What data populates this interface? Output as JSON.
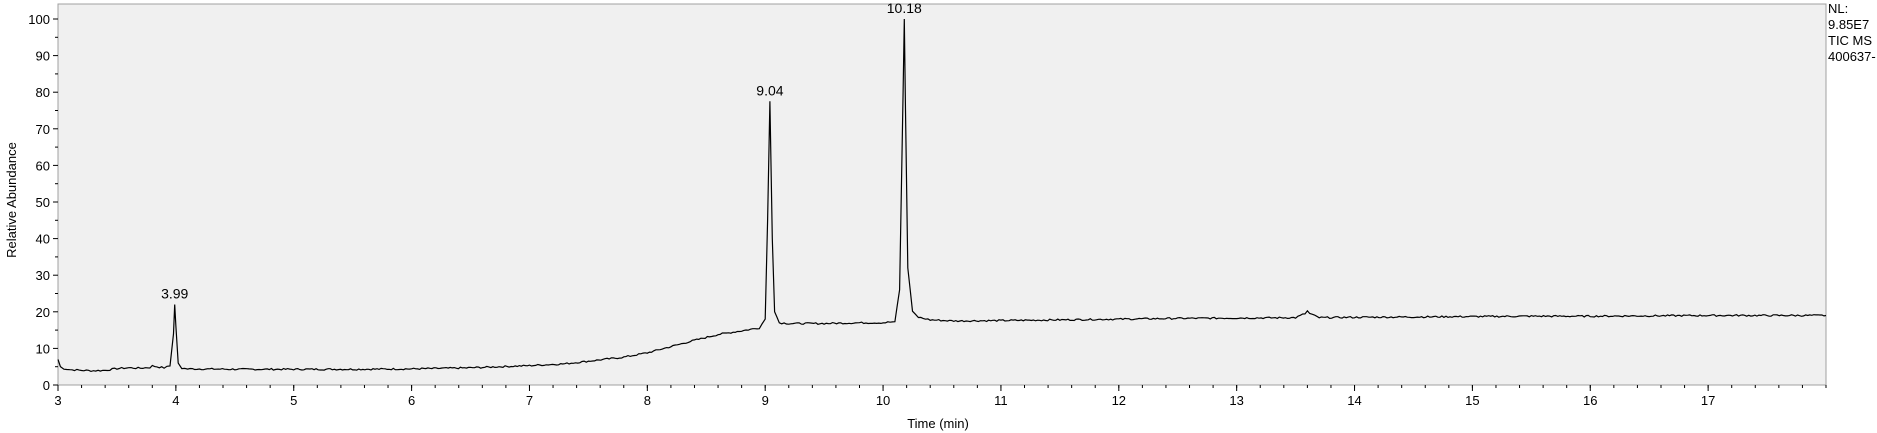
{
  "chart_data": {
    "type": "line",
    "title": "",
    "xlabel": "Time (min)",
    "ylabel": "Relative Abundance",
    "xlim": [
      3,
      18
    ],
    "ylim": [
      0,
      100
    ],
    "x_ticks": [
      3,
      4,
      5,
      6,
      7,
      8,
      9,
      10,
      11,
      12,
      13,
      14,
      15,
      16,
      17
    ],
    "y_ticks": [
      0,
      10,
      20,
      30,
      40,
      50,
      60,
      70,
      80,
      90,
      100
    ],
    "grid": false,
    "legend": "none",
    "line_color": "#000000",
    "plot_background": "#f0f0f0",
    "info_text": [
      "NL:",
      "9.85E7",
      "TIC  MS",
      "400637-"
    ],
    "peak_labels": [
      {
        "text": "3.99",
        "x": 3.99,
        "y": 22
      },
      {
        "text": "9.04",
        "x": 9.04,
        "y": 77.5
      },
      {
        "text": "10.18",
        "x": 10.18,
        "y": 100
      }
    ],
    "series": [
      {
        "x": [
          3.0,
          3.02,
          3.05,
          3.1,
          3.2,
          3.3,
          3.4,
          3.5,
          3.6,
          3.7,
          3.78,
          3.8,
          3.9,
          3.95,
          3.98,
          3.99,
          4.0,
          4.02,
          4.05,
          4.1,
          4.2,
          4.5,
          5.0,
          5.5,
          6.0,
          6.5,
          7.0,
          7.3,
          7.5,
          7.8,
          8.0,
          8.2,
          8.4,
          8.6,
          8.8,
          8.95,
          9.0,
          9.02,
          9.04,
          9.06,
          9.08,
          9.12,
          9.2,
          9.5,
          9.8,
          10.0,
          10.1,
          10.14,
          10.17,
          10.18,
          10.19,
          10.21,
          10.25,
          10.3,
          10.4,
          10.6,
          11.0,
          11.5,
          12.0,
          12.5,
          13.0,
          13.5,
          13.58,
          13.6,
          13.62,
          13.7,
          14.0,
          14.5,
          15.0,
          15.5,
          16.0,
          16.5,
          17.0,
          17.5,
          18.0
        ],
        "y": [
          7,
          5,
          4.5,
          4.2,
          4,
          3.9,
          4,
          4.5,
          4.7,
          4.6,
          4.8,
          5.2,
          4.7,
          5.2,
          14,
          22,
          16,
          6,
          4.6,
          4.4,
          4.4,
          4.3,
          4.3,
          4.3,
          4.4,
          4.7,
          5.3,
          5.8,
          6.5,
          7.6,
          8.8,
          10.5,
          12.2,
          13.8,
          14.8,
          15.6,
          18,
          45,
          77.5,
          40,
          20,
          17,
          16.8,
          16.8,
          17,
          17,
          17.3,
          26,
          80,
          100,
          75,
          32,
          20,
          18.5,
          17.8,
          17.5,
          17.6,
          17.8,
          18,
          18.2,
          18.3,
          18.4,
          19.5,
          20.2,
          19.5,
          18.4,
          18.5,
          18.6,
          18.7,
          18.8,
          18.8,
          18.9,
          19,
          19,
          19
        ]
      }
    ]
  }
}
